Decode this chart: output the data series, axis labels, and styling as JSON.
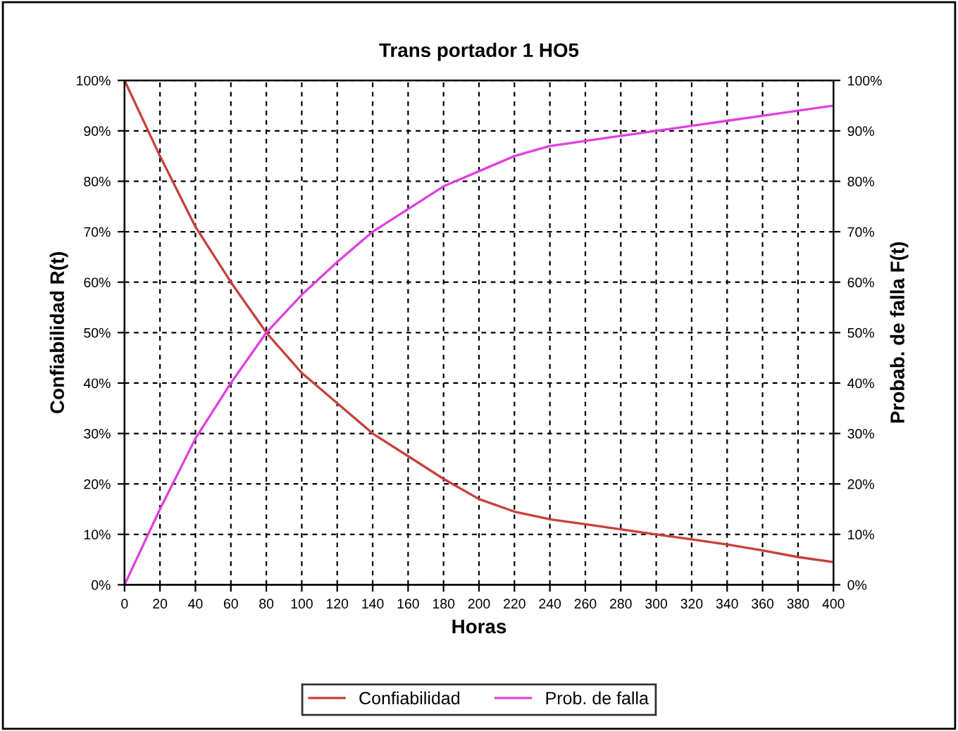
{
  "chart_data": {
    "type": "line",
    "title": "Trans portador 1 HO5",
    "xlabel": "Horas",
    "ylabel": "Confiabilidad R(t)",
    "y2label": "Probab. de falla F(t)",
    "x": [
      0,
      20,
      40,
      60,
      80,
      100,
      120,
      140,
      160,
      180,
      200,
      220,
      240,
      260,
      280,
      300,
      320,
      340,
      360,
      380,
      400
    ],
    "series": [
      {
        "name": "Confiabilidad",
        "color": "#c8403c",
        "values": [
          100,
          85,
          71,
          60,
          50,
          42,
          36,
          30,
          25.5,
          21,
          17,
          14.5,
          13,
          12,
          11,
          10,
          9,
          8,
          6.8,
          5.5,
          4.5
        ]
      },
      {
        "name": "Prob. de falla",
        "color": "#e040e0",
        "axis": "y2",
        "values": [
          0,
          15,
          29,
          40,
          50,
          57.5,
          64,
          70,
          74.5,
          79,
          82,
          85,
          87,
          88,
          89,
          90,
          91,
          92,
          93,
          94,
          95
        ]
      }
    ],
    "xlim": [
      0,
      400
    ],
    "xticks": [
      0,
      20,
      40,
      60,
      80,
      100,
      120,
      140,
      160,
      180,
      200,
      220,
      240,
      260,
      280,
      300,
      320,
      340,
      360,
      380,
      400
    ],
    "ylim": [
      0,
      100
    ],
    "yticks": [
      {
        "value": 0,
        "label": "0%"
      },
      {
        "value": 10,
        "label": "10%"
      },
      {
        "value": 20,
        "label": "20%"
      },
      {
        "value": 30,
        "label": "30%"
      },
      {
        "value": 40,
        "label": "40%"
      },
      {
        "value": 50,
        "label": "50%"
      },
      {
        "value": 60,
        "label": "60%"
      },
      {
        "value": 70,
        "label": "70%"
      },
      {
        "value": 80,
        "label": "80%"
      },
      {
        "value": 90,
        "label": "90%"
      },
      {
        "value": 100,
        "label": "100%"
      }
    ],
    "y2lim": [
      0,
      100
    ],
    "y2ticks": [
      {
        "value": 0,
        "label": "0%"
      },
      {
        "value": 10,
        "label": "10%"
      },
      {
        "value": 20,
        "label": "20%"
      },
      {
        "value": 30,
        "label": "30%"
      },
      {
        "value": 40,
        "label": "40%"
      },
      {
        "value": 50,
        "label": "50%"
      },
      {
        "value": 60,
        "label": "60%"
      },
      {
        "value": 70,
        "label": "70%"
      },
      {
        "value": 80,
        "label": "80%"
      },
      {
        "value": 90,
        "label": "90%"
      },
      {
        "value": 100,
        "label": "100%"
      }
    ],
    "grid": true,
    "legend": "bottom",
    "line_style": "solid"
  }
}
